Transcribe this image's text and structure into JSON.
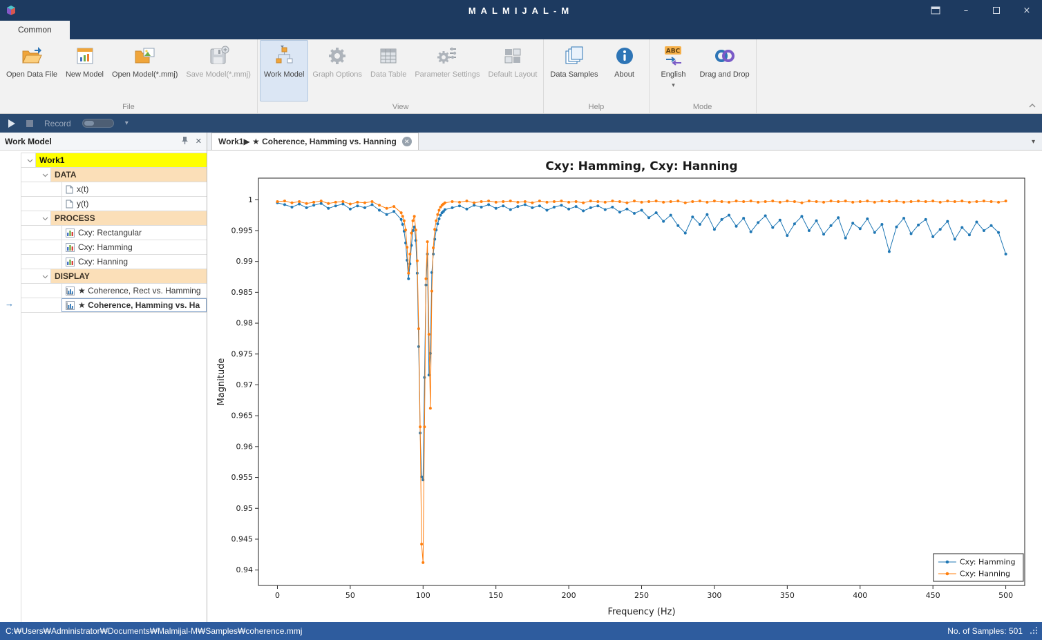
{
  "window": {
    "title": "MALMIJAL-M",
    "controls": {
      "minimize": "–",
      "maximize": "□",
      "close": "×"
    }
  },
  "ribbon": {
    "active_tab": "Common",
    "groups": [
      {
        "label": "File",
        "buttons": [
          {
            "label": "Open Data File",
            "enabled": true
          },
          {
            "label": "New Model",
            "enabled": true
          },
          {
            "label": "Open Model(*.mmj)",
            "enabled": true
          },
          {
            "label": "Save Model(*.mmj)",
            "enabled": false
          }
        ]
      },
      {
        "label": "View",
        "buttons": [
          {
            "label": "Work Model",
            "enabled": true,
            "active": true
          },
          {
            "label": "Graph Options",
            "enabled": false
          },
          {
            "label": "Data Table",
            "enabled": false
          },
          {
            "label": "Parameter Settings",
            "enabled": false
          },
          {
            "label": "Default Layout",
            "enabled": false
          }
        ]
      },
      {
        "label": "Help",
        "buttons": [
          {
            "label": "Data Samples",
            "enabled": true
          },
          {
            "label": "About",
            "enabled": true
          }
        ]
      },
      {
        "label": "Mode",
        "buttons": [
          {
            "label": "English",
            "enabled": true,
            "dropdown": "▾"
          },
          {
            "label": "Drag and Drop",
            "enabled": true
          }
        ]
      }
    ]
  },
  "toolbar": {
    "record_label": "Record"
  },
  "sidebar": {
    "title": "Work Model",
    "tree": [
      {
        "label": "Work1",
        "type": "root"
      },
      {
        "label": "DATA",
        "type": "category"
      },
      {
        "label": "x(t)",
        "type": "data-item"
      },
      {
        "label": "y(t)",
        "type": "data-item"
      },
      {
        "label": "PROCESS",
        "type": "category"
      },
      {
        "label": "Cxy: Rectangular",
        "type": "process-item"
      },
      {
        "label": "Cxy: Hamming",
        "type": "process-item"
      },
      {
        "label": "Cxy: Hanning",
        "type": "process-item"
      },
      {
        "label": "DISPLAY",
        "type": "category"
      },
      {
        "label": "★ Coherence, Rect vs. Hamming",
        "type": "display-item"
      },
      {
        "label": "★ Coherence, Hamming vs. Ha",
        "type": "display-item",
        "selected": true
      }
    ]
  },
  "doc_tab": {
    "label": "Work1▶ ★ Coherence, Hamming vs. Hanning"
  },
  "statusbar": {
    "path": "C:₩Users₩Administrator₩Documents₩Malmijal-M₩Samples₩coherence.mmj",
    "samples": "No. of Samples: 501"
  },
  "chart_data": {
    "type": "line",
    "title": "Cxy: Hamming, Cxy: Hanning",
    "xlabel": "Frequency (Hz)",
    "ylabel": "Magnitude",
    "xlim": [
      -13,
      513
    ],
    "ylim": [
      0.9375,
      1.0035
    ],
    "xticks": [
      0,
      50,
      100,
      150,
      200,
      250,
      300,
      350,
      400,
      450,
      500
    ],
    "yticks": [
      0.94,
      0.945,
      0.95,
      0.955,
      0.96,
      0.965,
      0.97,
      0.975,
      0.98,
      0.985,
      0.99,
      0.995,
      1
    ],
    "grid": false,
    "legend_position": "lower right",
    "x": [
      0,
      5,
      10,
      15,
      20,
      25,
      30,
      35,
      40,
      45,
      50,
      55,
      60,
      65,
      70,
      75,
      80,
      85,
      86,
      87,
      88,
      89,
      90,
      91,
      92,
      93,
      94,
      95,
      96,
      97,
      98,
      99,
      100,
      101,
      102,
      103,
      104,
      105,
      106,
      107,
      108,
      109,
      110,
      111,
      112,
      113,
      114,
      115,
      120,
      125,
      130,
      135,
      140,
      145,
      150,
      155,
      160,
      165,
      170,
      175,
      180,
      185,
      190,
      195,
      200,
      205,
      210,
      215,
      220,
      225,
      230,
      235,
      240,
      245,
      250,
      255,
      260,
      265,
      270,
      275,
      280,
      285,
      290,
      295,
      300,
      305,
      310,
      315,
      320,
      325,
      330,
      335,
      340,
      345,
      350,
      355,
      360,
      365,
      370,
      375,
      380,
      385,
      390,
      395,
      400,
      405,
      410,
      415,
      420,
      425,
      430,
      435,
      440,
      445,
      450,
      455,
      460,
      465,
      470,
      475,
      480,
      485,
      490,
      495,
      500
    ],
    "series": [
      {
        "name": "Cxy: Hamming",
        "color": "#1f77b4",
        "values": [
          0.9995,
          0.9992,
          0.9988,
          0.9993,
          0.9987,
          0.9991,
          0.9994,
          0.9986,
          0.999,
          0.9993,
          0.9985,
          0.999,
          0.9987,
          0.9992,
          0.9983,
          0.9976,
          0.9981,
          0.9968,
          0.996,
          0.9949,
          0.993,
          0.9902,
          0.9872,
          0.9896,
          0.9926,
          0.995,
          0.9956,
          0.9934,
          0.9881,
          0.9762,
          0.9622,
          0.9551,
          0.9546,
          0.9712,
          0.9862,
          0.9912,
          0.9716,
          0.9751,
          0.9882,
          0.9912,
          0.9936,
          0.9951,
          0.9961,
          0.9969,
          0.9975,
          0.9979,
          0.9981,
          0.9984,
          0.9987,
          0.999,
          0.9985,
          0.9991,
          0.9988,
          0.9992,
          0.9986,
          0.999,
          0.9984,
          0.9989,
          0.9992,
          0.9987,
          0.999,
          0.9983,
          0.9988,
          0.9991,
          0.9985,
          0.9989,
          0.9982,
          0.9987,
          0.999,
          0.9984,
          0.9988,
          0.998,
          0.9985,
          0.9978,
          0.9983,
          0.9971,
          0.9979,
          0.9965,
          0.9975,
          0.9958,
          0.9946,
          0.9972,
          0.996,
          0.9976,
          0.9952,
          0.9968,
          0.9975,
          0.9957,
          0.997,
          0.9948,
          0.9963,
          0.9974,
          0.9955,
          0.9967,
          0.9942,
          0.9961,
          0.9973,
          0.995,
          0.9966,
          0.9944,
          0.9958,
          0.9971,
          0.9938,
          0.9962,
          0.9953,
          0.9969,
          0.9947,
          0.996,
          0.9916,
          0.9956,
          0.997,
          0.9945,
          0.9959,
          0.9968,
          0.994,
          0.9952,
          0.9965,
          0.9936,
          0.9955,
          0.9943,
          0.9964,
          0.995,
          0.9958,
          0.9947,
          0.9912
        ]
      },
      {
        "name": "Cxy: Hanning",
        "color": "#ff7f0e",
        "values": [
          0.9997,
          0.9998,
          0.9995,
          0.9997,
          0.9994,
          0.9996,
          0.9998,
          0.9994,
          0.9996,
          0.9997,
          0.9993,
          0.9996,
          0.9995,
          0.9997,
          0.9991,
          0.9986,
          0.9989,
          0.9979,
          0.9973,
          0.9966,
          0.9951,
          0.9923,
          0.9881,
          0.9912,
          0.9946,
          0.9966,
          0.9973,
          0.9951,
          0.9901,
          0.9791,
          0.9632,
          0.9442,
          0.9412,
          0.9632,
          0.9872,
          0.9932,
          0.9782,
          0.9662,
          0.9852,
          0.9922,
          0.9952,
          0.9966,
          0.9976,
          0.9983,
          0.9988,
          0.9991,
          0.9993,
          0.9995,
          0.9997,
          0.9996,
          0.9998,
          0.9995,
          0.9997,
          0.9998,
          0.9996,
          0.9997,
          0.9998,
          0.9996,
          0.9997,
          0.9995,
          0.9998,
          0.9996,
          0.9997,
          0.9998,
          0.9996,
          0.9997,
          0.9995,
          0.9998,
          0.9997,
          0.9996,
          0.9998,
          0.9997,
          0.9995,
          0.9998,
          0.9996,
          0.9997,
          0.9998,
          0.9996,
          0.9997,
          0.9998,
          0.9995,
          0.9997,
          0.9998,
          0.9996,
          0.9998,
          0.9997,
          0.9996,
          0.9998,
          0.9997,
          0.9998,
          0.9996,
          0.9997,
          0.9998,
          0.9996,
          0.9998,
          0.9997,
          0.9995,
          0.9998,
          0.9997,
          0.9996,
          0.9998,
          0.9997,
          0.9998,
          0.9996,
          0.9997,
          0.9998,
          0.9996,
          0.9998,
          0.9997,
          0.9998,
          0.9996,
          0.9997,
          0.9998,
          0.9997,
          0.9998,
          0.9996,
          0.9998,
          0.9997,
          0.9998,
          0.9996,
          0.9997,
          0.9998,
          0.9997,
          0.9996,
          0.9998
        ]
      }
    ]
  }
}
